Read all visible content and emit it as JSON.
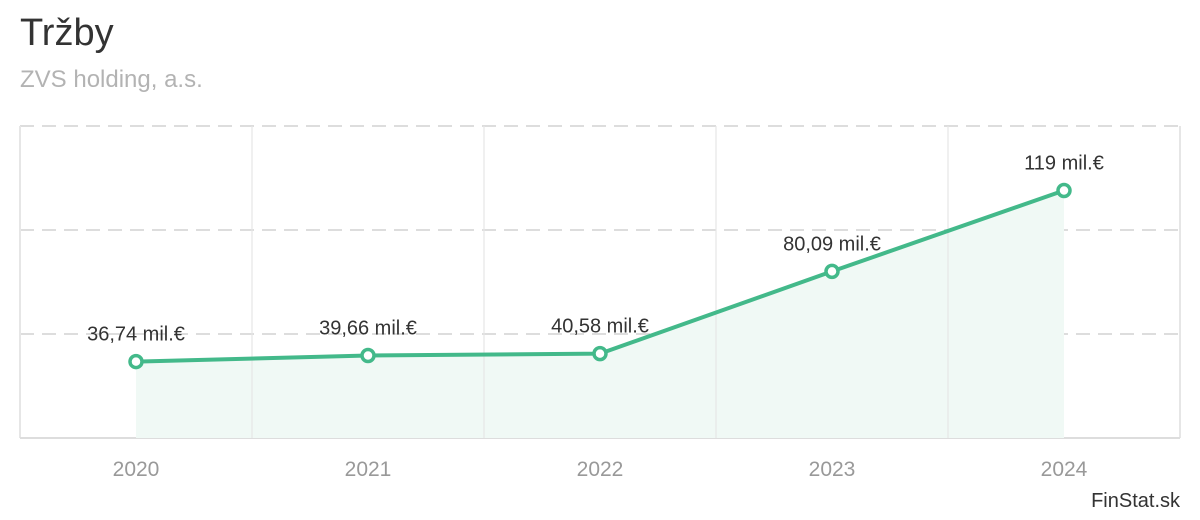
{
  "header": {
    "title": "Tržby",
    "subtitle": "ZVS holding, a.s."
  },
  "credit": "FinStat.sk",
  "chart_data": {
    "type": "area",
    "title": "Tržby",
    "subtitle": "ZVS holding, a.s.",
    "x": [
      "2020",
      "2021",
      "2022",
      "2023",
      "2024"
    ],
    "series": [
      {
        "values": [
          36.74,
          39.66,
          40.58,
          80.09,
          119
        ],
        "data_labels": [
          "36,74 mil.€",
          "39,66 mil.€",
          "40,58 mil.€",
          "80,09 mil.€",
          "119 mil.€"
        ]
      }
    ],
    "ylim": [
      0,
      150
    ],
    "y_axis_labels": false,
    "grid": true,
    "legend": "none",
    "colors": {
      "line": "#43b98a",
      "fill": "#f0f9f5",
      "grid_h": "#dddddd",
      "grid_v": "#e6e6e6",
      "axis": "#dddddd"
    }
  }
}
